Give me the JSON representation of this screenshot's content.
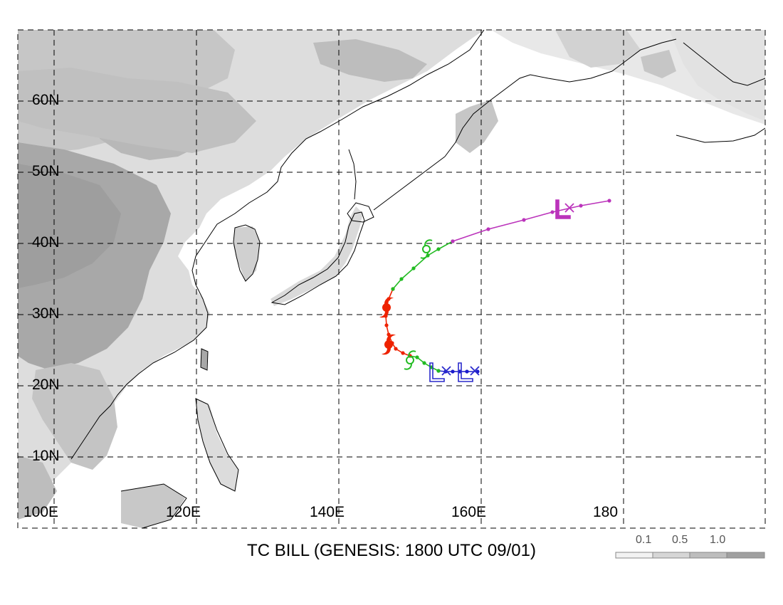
{
  "title": "TC BILL (GENESIS: 1800 UTC 09/01)",
  "axes": {
    "lat_labels": [
      "60N",
      "50N",
      "40N",
      "30N",
      "20N",
      "10N"
    ],
    "lon_labels": [
      "100E",
      "120E",
      "140E",
      "160E",
      "180"
    ],
    "lon_range": [
      98,
      198
    ],
    "lat_range": [
      3,
      73
    ],
    "grid": "dashed"
  },
  "legend": {
    "labels": [
      "0.1",
      "0.5",
      "1.0"
    ],
    "colors": [
      "#f2f2f2",
      "#d6d6d6",
      "#bdbdbd",
      "#a0a0a0"
    ]
  },
  "track": {
    "segments": [
      {
        "stage": "low",
        "color": "#1a1acc",
        "points": [
          [
            159.5,
            22.0
          ],
          [
            158.0,
            22.0
          ],
          [
            157.0,
            22.0
          ],
          [
            156.0,
            22.0
          ],
          [
            155.0,
            22.0
          ],
          [
            154.0,
            22.1
          ]
        ]
      },
      {
        "stage": "tropical-storm",
        "color": "#22bb22",
        "points": [
          [
            154.0,
            22.1
          ],
          [
            153.0,
            22.6
          ],
          [
            152.0,
            23.2
          ],
          [
            151.0,
            24.0
          ],
          [
            150.0,
            24.2
          ]
        ]
      },
      {
        "stage": "typhoon",
        "color": "#ee2200",
        "points": [
          [
            150.0,
            24.2
          ],
          [
            149.0,
            24.6
          ],
          [
            148.0,
            25.2
          ],
          [
            147.5,
            26.0
          ],
          [
            147.0,
            27.2
          ],
          [
            146.7,
            28.5
          ],
          [
            146.6,
            29.8
          ],
          [
            146.7,
            31.0
          ],
          [
            147.0,
            32.2
          ],
          [
            147.6,
            33.6
          ]
        ]
      },
      {
        "stage": "tropical-storm",
        "color": "#22bb22",
        "points": [
          [
            147.6,
            33.6
          ],
          [
            148.8,
            35.0
          ],
          [
            150.5,
            36.5
          ],
          [
            152.5,
            38.3
          ],
          [
            154.0,
            39.2
          ],
          [
            156.0,
            40.3
          ]
        ]
      },
      {
        "stage": "extratropical",
        "color": "#bb33bb",
        "points": [
          [
            156.0,
            40.3
          ],
          [
            161.0,
            42.0
          ],
          [
            166.0,
            43.3
          ],
          [
            170.0,
            44.4
          ],
          [
            174.0,
            45.3
          ],
          [
            178.0,
            46.0
          ]
        ]
      }
    ],
    "symbols": [
      {
        "type": "low",
        "color": "#2a2acc",
        "lon": 153.8,
        "lat": 21.8
      },
      {
        "type": "low",
        "color": "#2a2acc",
        "lon": 157.8,
        "lat": 21.8
      },
      {
        "type": "tropical-storm",
        "color": "#22bb22",
        "lon": 150.0,
        "lat": 23.6
      },
      {
        "type": "typhoon",
        "color": "#ee2200",
        "lon": 147.0,
        "lat": 25.8
      },
      {
        "type": "typhoon",
        "color": "#ee2200",
        "lon": 146.7,
        "lat": 31.0
      },
      {
        "type": "tropical-storm",
        "color": "#22bb22",
        "lon": 152.3,
        "lat": 39.2
      },
      {
        "type": "low",
        "color": "#bb33bb",
        "lon": 171.5,
        "lat": 44.7
      }
    ],
    "cross_marks": [
      {
        "color": "#2a2acc",
        "lon": 155.1,
        "lat": 22.1
      },
      {
        "color": "#2a2acc",
        "lon": 159.1,
        "lat": 22.1
      },
      {
        "color": "#bb33bb",
        "lon": 172.4,
        "lat": 45.0
      }
    ]
  }
}
